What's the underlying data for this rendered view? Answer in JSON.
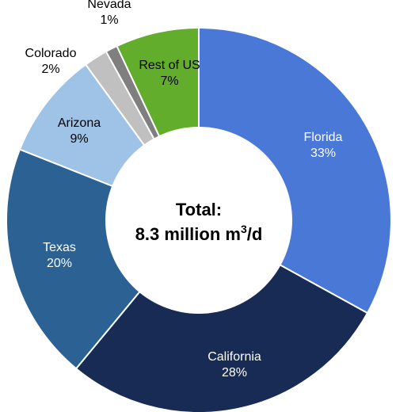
{
  "chart_data": {
    "type": "pie",
    "donut": true,
    "center_label": {
      "line1": "Total:",
      "line2_prefix": "8.3 million m",
      "line2_sup": "3",
      "line2_suffix": "/d"
    },
    "slices": [
      {
        "name": "Florida",
        "label": "Florida",
        "percent_label": "33%",
        "value": 33,
        "color": "#4a78d6",
        "text_color": "#ffffff"
      },
      {
        "name": "California",
        "label": "California",
        "percent_label": "28%",
        "value": 28,
        "color": "#172b55",
        "text_color": "#ffffff"
      },
      {
        "name": "Texas",
        "label": "Texas",
        "percent_label": "20%",
        "value": 20,
        "color": "#2c6193",
        "text_color": "#ffffff"
      },
      {
        "name": "Arizona",
        "label": "Arizona",
        "percent_label": "9%",
        "value": 9,
        "color": "#9ec3e6",
        "text_color": "#000000"
      },
      {
        "name": "Colorado",
        "label": "Colorado",
        "percent_label": "2%",
        "value": 2,
        "color": "#c0c0c0",
        "text_color": "#000000"
      },
      {
        "name": "Nevada",
        "label": "Nevada",
        "percent_label": "1%",
        "value": 1,
        "color": "#7f7f7f",
        "text_color": "#000000"
      },
      {
        "name": "Rest of US",
        "label": "Rest of US",
        "percent_label": "7%",
        "value": 7,
        "color": "#62ad2b",
        "text_color": "#000000"
      }
    ]
  }
}
